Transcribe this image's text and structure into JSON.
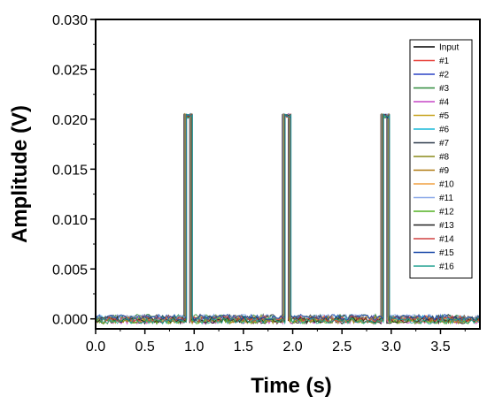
{
  "chart_data": {
    "type": "line",
    "title": "",
    "xlabel": "Time (s)",
    "ylabel": "Amplitude (V)",
    "xlim": [
      0.0,
      3.9
    ],
    "ylim": [
      -0.001,
      0.03
    ],
    "xticks": [
      "0.0",
      "0.5",
      "1.0",
      "1.5",
      "2.0",
      "2.5",
      "3.0",
      "3.5"
    ],
    "yticks": [
      "0.000",
      "0.005",
      "0.010",
      "0.015",
      "0.020",
      "0.025",
      "0.030"
    ],
    "grid": false,
    "legend_position": "top-right",
    "pulses": [
      {
        "start": 0.91,
        "end": 0.97,
        "high": 0.0205
      },
      {
        "start": 1.91,
        "end": 1.97,
        "high": 0.0205
      },
      {
        "start": 2.91,
        "end": 2.97,
        "high": 0.0205
      }
    ],
    "baseline": 0.0,
    "series": [
      {
        "name": "Input",
        "color": "#000000"
      },
      {
        "name": "#1",
        "color": "#e8413a"
      },
      {
        "name": "#2",
        "color": "#2b44c6"
      },
      {
        "name": "#3",
        "color": "#2f8a3c"
      },
      {
        "name": "#4",
        "color": "#c646c6"
      },
      {
        "name": "#5",
        "color": "#c8a21e"
      },
      {
        "name": "#6",
        "color": "#18b8d8"
      },
      {
        "name": "#7",
        "color": "#2d3a4a"
      },
      {
        "name": "#8",
        "color": "#8a8a1a"
      },
      {
        "name": "#9",
        "color": "#b07a12"
      },
      {
        "name": "#10",
        "color": "#f0a040"
      },
      {
        "name": "#11",
        "color": "#8aa8e8"
      },
      {
        "name": "#12",
        "color": "#52b020"
      },
      {
        "name": "#13",
        "color": "#202020"
      },
      {
        "name": "#14",
        "color": "#d04040"
      },
      {
        "name": "#15",
        "color": "#1848a8"
      },
      {
        "name": "#16",
        "color": "#20a090"
      }
    ]
  }
}
